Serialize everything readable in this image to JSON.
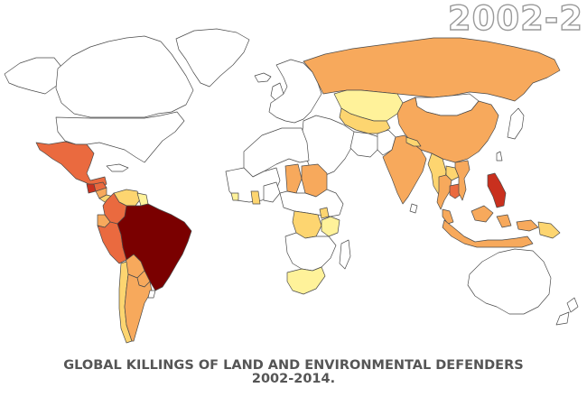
{
  "year_label": "2002-2",
  "caption": {
    "line1": "GLOBAL KILLINGS OF LAND AND ENVIRONMENTAL DEFENDERS",
    "line2": "2002-2014."
  },
  "colors": {
    "none": "#ffffff",
    "very_low": "#fff29a",
    "low": "#fdd570",
    "medium": "#f7a95c",
    "high": "#ea6a3f",
    "very_high": "#c9301e",
    "extreme": "#7a0000",
    "outline": "#4a4a4a"
  },
  "map_data": {
    "regions": [
      {
        "name": "greenland",
        "level": "none"
      },
      {
        "name": "canada",
        "level": "none"
      },
      {
        "name": "united-states",
        "level": "none"
      },
      {
        "name": "alaska",
        "level": "none"
      },
      {
        "name": "mexico",
        "level": "high"
      },
      {
        "name": "guatemala",
        "level": "very_high"
      },
      {
        "name": "honduras",
        "level": "high"
      },
      {
        "name": "nicaragua",
        "level": "medium"
      },
      {
        "name": "panama",
        "level": "low"
      },
      {
        "name": "colombia",
        "level": "high"
      },
      {
        "name": "venezuela",
        "level": "low"
      },
      {
        "name": "guyana",
        "level": "very_low"
      },
      {
        "name": "ecuador",
        "level": "medium"
      },
      {
        "name": "peru",
        "level": "high"
      },
      {
        "name": "brazil",
        "level": "extreme"
      },
      {
        "name": "bolivia",
        "level": "medium"
      },
      {
        "name": "paraguay",
        "level": "medium"
      },
      {
        "name": "chile",
        "level": "low"
      },
      {
        "name": "argentina",
        "level": "medium"
      },
      {
        "name": "uruguay",
        "level": "none"
      },
      {
        "name": "europe",
        "level": "none"
      },
      {
        "name": "russia",
        "level": "medium"
      },
      {
        "name": "kazakhstan",
        "level": "very_low"
      },
      {
        "name": "mongolia",
        "level": "none"
      },
      {
        "name": "china",
        "level": "medium"
      },
      {
        "name": "central-asia",
        "level": "low"
      },
      {
        "name": "middle-east",
        "level": "none"
      },
      {
        "name": "iran",
        "level": "none"
      },
      {
        "name": "pakistan",
        "level": "none"
      },
      {
        "name": "india",
        "level": "medium"
      },
      {
        "name": "nepal",
        "level": "low"
      },
      {
        "name": "myanmar",
        "level": "low"
      },
      {
        "name": "thailand",
        "level": "medium"
      },
      {
        "name": "cambodia",
        "level": "high"
      },
      {
        "name": "vietnam",
        "level": "medium"
      },
      {
        "name": "laos",
        "level": "low"
      },
      {
        "name": "philippines",
        "level": "very_high"
      },
      {
        "name": "malaysia",
        "level": "medium"
      },
      {
        "name": "indonesia",
        "level": "medium"
      },
      {
        "name": "papua-new-guinea",
        "level": "low"
      },
      {
        "name": "japan",
        "level": "none"
      },
      {
        "name": "north-africa",
        "level": "none"
      },
      {
        "name": "west-africa",
        "level": "none"
      },
      {
        "name": "liberia",
        "level": "very_low"
      },
      {
        "name": "ghana",
        "level": "low"
      },
      {
        "name": "nigeria",
        "level": "none"
      },
      {
        "name": "sudan",
        "level": "medium"
      },
      {
        "name": "chad",
        "level": "medium"
      },
      {
        "name": "central-africa",
        "level": "none"
      },
      {
        "name": "dr-congo",
        "level": "low"
      },
      {
        "name": "uganda",
        "level": "low"
      },
      {
        "name": "tanzania",
        "level": "very_low"
      },
      {
        "name": "southern-africa",
        "level": "none"
      },
      {
        "name": "south-africa",
        "level": "very_low"
      },
      {
        "name": "madagascar",
        "level": "none"
      },
      {
        "name": "australia",
        "level": "none"
      },
      {
        "name": "new-zealand",
        "level": "none"
      },
      {
        "name": "uk",
        "level": "none"
      },
      {
        "name": "iceland",
        "level": "none"
      },
      {
        "name": "caribbean",
        "level": "none"
      },
      {
        "name": "sri-lanka",
        "level": "none"
      },
      {
        "name": "taiwan",
        "level": "none"
      }
    ]
  }
}
